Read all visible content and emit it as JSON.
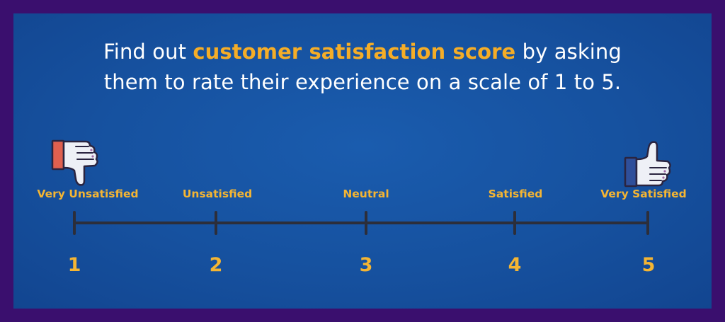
{
  "headline": {
    "before": "Find out ",
    "highlight": "customer satisfaction score",
    "after_line1": " by asking",
    "line2": "them to rate their experience on a scale of 1 to 5."
  },
  "scale": {
    "points": [
      {
        "label": "Very Unsatisfied",
        "number": "1"
      },
      {
        "label": "Unsatisfied",
        "number": "2"
      },
      {
        "label": "Neutral",
        "number": "3"
      },
      {
        "label": "Satisfied",
        "number": "4"
      },
      {
        "label": "Very Satisfied",
        "number": "5"
      }
    ]
  },
  "icons": {
    "left": "thumbs-down-icon",
    "right": "thumbs-up-icon"
  },
  "colors": {
    "background": "#16519f",
    "border": "#3a0f6e",
    "accent": "#f4b533",
    "line": "#2c2e3a"
  }
}
